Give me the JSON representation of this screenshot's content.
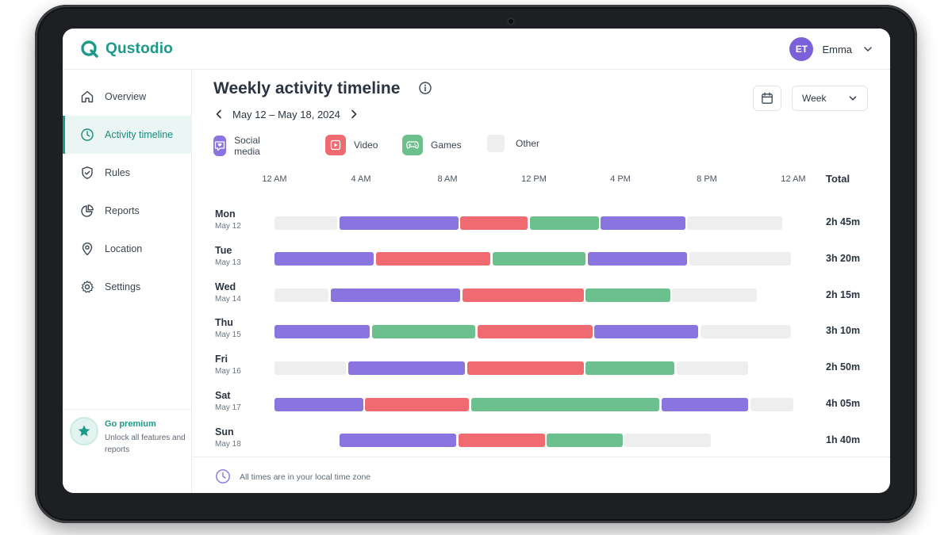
{
  "app": {
    "name": "Qustodio",
    "brand_color": "#1c9a89"
  },
  "user": {
    "initials": "ET",
    "name": "Emma",
    "avatar_color": "#7b61d9"
  },
  "sidebar": {
    "items": [
      {
        "label": "Overview",
        "icon": "home-icon"
      },
      {
        "label": "Activity timeline",
        "icon": "clock-icon",
        "active": true
      },
      {
        "label": "Rules",
        "icon": "shield-check-icon"
      },
      {
        "label": "Reports",
        "icon": "pie-chart-icon"
      },
      {
        "label": "Location",
        "icon": "map-pin-icon"
      },
      {
        "label": "Settings",
        "icon": "gear-icon"
      }
    ],
    "premium": {
      "title": "Go premium",
      "subtitle": "Unlock all features and reports",
      "icon": "star-icon"
    }
  },
  "main": {
    "title": "Weekly activity timeline",
    "date_range": "May 12 – May 18, 2024",
    "period_select": "Week",
    "legend": [
      {
        "label": "Social media",
        "color": "#8a74e0",
        "icon": "heart-chat-icon"
      },
      {
        "label": "Video",
        "color": "#f06a72",
        "icon": "play-icon"
      },
      {
        "label": "Games",
        "color": "#6cc08e",
        "icon": "gamepad-icon"
      },
      {
        "label": "Other",
        "color": "#eeeeee",
        "icon": ""
      }
    ],
    "axis_ticks": [
      "12 AM",
      "4 AM",
      "8 AM",
      "12 PM",
      "4 PM",
      "8 PM",
      "12 AM"
    ],
    "total_header": "Total",
    "footer_note": "All times are in your local time zone"
  },
  "chart_data": {
    "type": "timeline",
    "x_unit": "hour of day",
    "xlim": [
      0,
      24
    ],
    "categories": [
      "Social media",
      "Video",
      "Games",
      "Other"
    ],
    "days": [
      {
        "day": "Mon",
        "date": "May 12",
        "total": "2h 45m",
        "segments": [
          {
            "category": "Other",
            "start": 0.0,
            "end": 2.9
          },
          {
            "category": "Social media",
            "start": 3.0,
            "end": 8.5
          },
          {
            "category": "Video",
            "start": 8.6,
            "end": 11.7
          },
          {
            "category": "Games",
            "start": 11.8,
            "end": 15.0
          },
          {
            "category": "Social media",
            "start": 15.1,
            "end": 19.0
          },
          {
            "category": "Other",
            "start": 19.1,
            "end": 23.5
          }
        ]
      },
      {
        "day": "Tue",
        "date": "May 13",
        "total": "3h 20m",
        "segments": [
          {
            "category": "Social media",
            "start": 0.0,
            "end": 4.6
          },
          {
            "category": "Video",
            "start": 4.7,
            "end": 10.0
          },
          {
            "category": "Games",
            "start": 10.1,
            "end": 14.4
          },
          {
            "category": "Social media",
            "start": 14.5,
            "end": 19.1
          },
          {
            "category": "Other",
            "start": 19.2,
            "end": 23.9
          }
        ]
      },
      {
        "day": "Wed",
        "date": "May 14",
        "total": "2h 15m",
        "segments": [
          {
            "category": "Other",
            "start": 0.0,
            "end": 2.5
          },
          {
            "category": "Social media",
            "start": 2.6,
            "end": 8.6
          },
          {
            "category": "Video",
            "start": 8.7,
            "end": 14.3
          },
          {
            "category": "Games",
            "start": 14.4,
            "end": 18.3
          },
          {
            "category": "Other",
            "start": 18.4,
            "end": 22.3
          }
        ]
      },
      {
        "day": "Thu",
        "date": "May 15",
        "total": "3h 10m",
        "segments": [
          {
            "category": "Social media",
            "start": 0.0,
            "end": 4.4
          },
          {
            "category": "Games",
            "start": 4.5,
            "end": 9.3
          },
          {
            "category": "Video",
            "start": 9.4,
            "end": 14.7
          },
          {
            "category": "Social media",
            "start": 14.8,
            "end": 19.6
          },
          {
            "category": "Other",
            "start": 19.7,
            "end": 23.9
          }
        ]
      },
      {
        "day": "Fri",
        "date": "May 16",
        "total": "2h 50m",
        "segments": [
          {
            "category": "Other",
            "start": 0.0,
            "end": 3.3
          },
          {
            "category": "Social media",
            "start": 3.4,
            "end": 8.8
          },
          {
            "category": "Video",
            "start": 8.9,
            "end": 14.3
          },
          {
            "category": "Games",
            "start": 14.4,
            "end": 18.5
          },
          {
            "category": "Other",
            "start": 18.6,
            "end": 21.9
          }
        ]
      },
      {
        "day": "Sat",
        "date": "May 17",
        "total": "4h 05m",
        "segments": [
          {
            "category": "Social media",
            "start": 0.0,
            "end": 4.1
          },
          {
            "category": "Video",
            "start": 4.2,
            "end": 9.0
          },
          {
            "category": "Games",
            "start": 9.1,
            "end": 17.8
          },
          {
            "category": "Social media",
            "start": 17.9,
            "end": 21.9
          },
          {
            "category": "Other",
            "start": 22.0,
            "end": 24.0
          }
        ]
      },
      {
        "day": "Sun",
        "date": "May 18",
        "total": "1h 40m",
        "segments": [
          {
            "category": "Social media",
            "start": 3.0,
            "end": 8.4
          },
          {
            "category": "Video",
            "start": 8.5,
            "end": 12.5
          },
          {
            "category": "Games",
            "start": 12.6,
            "end": 16.1
          },
          {
            "category": "Other",
            "start": 16.2,
            "end": 20.2
          }
        ]
      }
    ]
  }
}
